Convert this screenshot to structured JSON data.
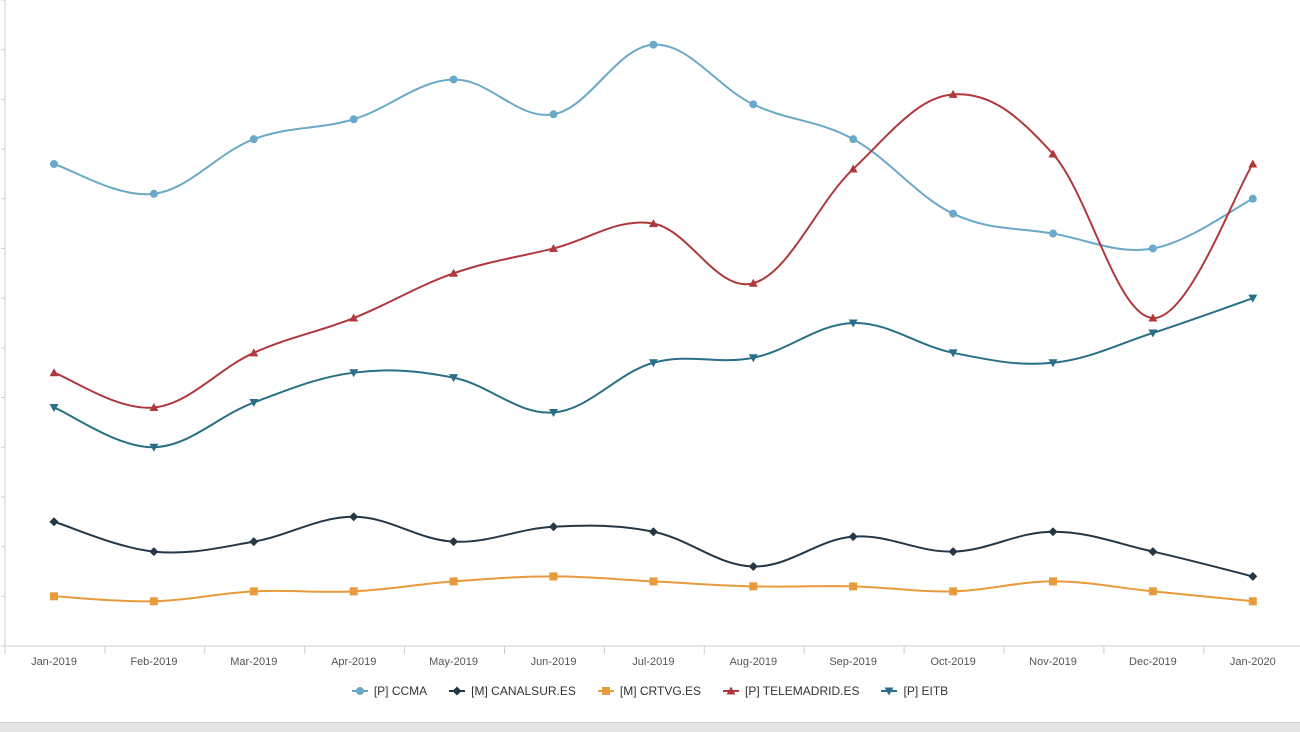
{
  "chart_data": {
    "type": "line",
    "categories": [
      "Jan-2019",
      "Feb-2019",
      "Mar-2019",
      "Apr-2019",
      "May-2019",
      "Jun-2019",
      "Jul-2019",
      "Aug-2019",
      "Sep-2019",
      "Oct-2019",
      "Nov-2019",
      "Dec-2019",
      "Jan-2020"
    ],
    "ylim": [
      0,
      13
    ],
    "grid": false,
    "legend_position": "bottom-center",
    "series": [
      {
        "id": "ccma",
        "name": "[P] CCMA",
        "color": "#6aa9c8",
        "marker": "circle",
        "values": [
          9.7,
          9.1,
          10.2,
          10.6,
          11.4,
          10.7,
          12.1,
          10.9,
          10.2,
          8.7,
          8.3,
          8.0,
          9.0
        ]
      },
      {
        "id": "canalsur",
        "name": "[M] CANALSUR.ES",
        "color": "#253746",
        "marker": "diamond",
        "values": [
          2.5,
          1.9,
          2.1,
          2.6,
          2.1,
          2.4,
          2.3,
          1.6,
          2.2,
          1.9,
          2.3,
          1.9,
          1.4
        ]
      },
      {
        "id": "crtvg",
        "name": "[M] CRTVG.ES",
        "color": "#e89a3c",
        "marker": "square",
        "values": [
          1.0,
          0.9,
          1.1,
          1.1,
          1.3,
          1.4,
          1.3,
          1.2,
          1.2,
          1.1,
          1.3,
          1.1,
          0.9
        ]
      },
      {
        "id": "telemadrid",
        "name": "[P] TELEMADRID.ES",
        "color": "#b0383d",
        "marker": "triangle-up",
        "values": [
          5.5,
          4.8,
          5.9,
          6.6,
          7.5,
          8.0,
          8.5,
          7.3,
          9.6,
          11.1,
          9.9,
          6.6,
          9.7
        ]
      },
      {
        "id": "eitb",
        "name": "[P] EITB",
        "color": "#2a6e88",
        "marker": "triangle-down",
        "values": [
          4.8,
          4.0,
          4.9,
          5.5,
          5.4,
          4.7,
          5.7,
          5.8,
          6.5,
          5.9,
          5.7,
          6.3,
          7.0
        ]
      }
    ]
  }
}
